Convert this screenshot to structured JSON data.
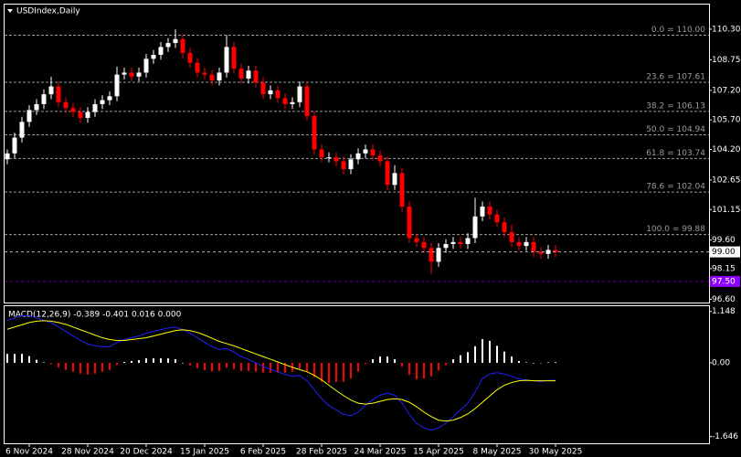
{
  "chart_data": [
    {
      "type": "candlestick",
      "title": "USDIndex,Daily",
      "categories": [
        null,
        null,
        null,
        "6 Nov 2024",
        null,
        null,
        null,
        null,
        null,
        null,
        null,
        "28 Nov 2024",
        null,
        null,
        null,
        null,
        null,
        null,
        null,
        "20 Dec 2024",
        null,
        null,
        null,
        null,
        null,
        null,
        null,
        "15 Jan 2025",
        null,
        null,
        null,
        null,
        null,
        null,
        null,
        "6 Feb 2025",
        null,
        null,
        null,
        null,
        null,
        null,
        null,
        "28 Feb 2025",
        null,
        null,
        null,
        null,
        null,
        null,
        null,
        "24 Mar 2025",
        null,
        null,
        null,
        null,
        null,
        null,
        null,
        "15 Apr 2025",
        null,
        null,
        null,
        null,
        null,
        null,
        null,
        "8 May 2025",
        null,
        null,
        null,
        null,
        null,
        null,
        null,
        "30 May 2025"
      ],
      "ohlc": [
        [
          103.7,
          104.2,
          103.45,
          104.0
        ],
        [
          104.0,
          105.05,
          103.75,
          104.8
        ],
        [
          104.8,
          105.85,
          104.55,
          105.6
        ],
        [
          105.6,
          106.45,
          105.35,
          106.2
        ],
        [
          106.2,
          106.75,
          105.95,
          106.5
        ],
        [
          106.5,
          107.25,
          106.25,
          107.0
        ],
        [
          107.0,
          107.9,
          106.75,
          107.4
        ],
        [
          107.4,
          107.65,
          106.35,
          106.6
        ],
        [
          106.6,
          106.85,
          106.05,
          106.3
        ],
        [
          106.3,
          106.55,
          105.85,
          106.1
        ],
        [
          106.1,
          106.35,
          105.55,
          105.8
        ],
        [
          105.8,
          106.35,
          105.55,
          106.1
        ],
        [
          106.1,
          106.75,
          105.85,
          106.5
        ],
        [
          106.5,
          106.95,
          106.25,
          106.7
        ],
        [
          106.7,
          107.15,
          106.45,
          106.9
        ],
        [
          106.9,
          108.4,
          106.65,
          108.0
        ],
        [
          108.0,
          108.35,
          107.75,
          108.1
        ],
        [
          108.1,
          108.35,
          107.65,
          107.9
        ],
        [
          107.9,
          108.35,
          107.65,
          108.1
        ],
        [
          108.1,
          109.05,
          107.85,
          108.8
        ],
        [
          108.8,
          109.25,
          108.55,
          109.0
        ],
        [
          109.0,
          109.65,
          108.75,
          109.4
        ],
        [
          109.4,
          109.85,
          109.15,
          109.6
        ],
        [
          109.6,
          110.3,
          109.35,
          109.8
        ],
        [
          109.8,
          110.05,
          108.85,
          109.1
        ],
        [
          109.1,
          109.35,
          108.35,
          108.6
        ],
        [
          108.6,
          108.85,
          107.85,
          108.1
        ],
        [
          108.1,
          108.35,
          107.75,
          108.0
        ],
        [
          108.0,
          108.25,
          107.45,
          107.7
        ],
        [
          107.7,
          108.35,
          107.45,
          108.1
        ],
        [
          108.1,
          110.0,
          107.85,
          109.4
        ],
        [
          109.4,
          109.65,
          108.05,
          108.3
        ],
        [
          108.3,
          108.55,
          107.55,
          107.8
        ],
        [
          107.8,
          108.45,
          107.55,
          108.2
        ],
        [
          108.2,
          108.45,
          107.35,
          107.6
        ],
        [
          107.6,
          107.85,
          106.75,
          107.0
        ],
        [
          107.0,
          107.45,
          106.75,
          107.2
        ],
        [
          107.2,
          107.45,
          106.55,
          106.8
        ],
        [
          106.8,
          107.05,
          106.25,
          106.5
        ],
        [
          106.5,
          106.85,
          106.25,
          106.6
        ],
        [
          106.6,
          107.65,
          106.35,
          107.4
        ],
        [
          107.4,
          107.65,
          105.65,
          105.9
        ],
        [
          105.9,
          106.15,
          103.95,
          104.2
        ],
        [
          104.2,
          104.45,
          103.55,
          103.8
        ],
        [
          103.8,
          104.05,
          103.55,
          103.8
        ],
        [
          103.8,
          104.05,
          103.35,
          103.6
        ],
        [
          103.6,
          103.85,
          102.95,
          103.2
        ],
        [
          103.2,
          103.95,
          102.95,
          103.7
        ],
        [
          103.7,
          104.25,
          103.45,
          104.0
        ],
        [
          104.0,
          104.45,
          103.75,
          104.2
        ],
        [
          104.2,
          104.45,
          103.65,
          103.9
        ],
        [
          103.9,
          104.15,
          103.35,
          103.6
        ],
        [
          103.6,
          103.85,
          102.15,
          102.4
        ],
        [
          102.4,
          103.4,
          102.15,
          103.0
        ],
        [
          103.0,
          103.25,
          101.05,
          101.3
        ],
        [
          101.3,
          101.55,
          99.45,
          99.7
        ],
        [
          99.7,
          99.95,
          99.25,
          99.5
        ],
        [
          99.5,
          99.75,
          98.95,
          99.2
        ],
        [
          99.2,
          99.45,
          97.9,
          98.5
        ],
        [
          98.5,
          99.45,
          98.25,
          99.2
        ],
        [
          99.2,
          99.65,
          98.95,
          99.4
        ],
        [
          99.4,
          99.75,
          99.15,
          99.5
        ],
        [
          99.5,
          99.75,
          99.15,
          99.4
        ],
        [
          99.4,
          99.95,
          99.15,
          99.7
        ],
        [
          99.7,
          101.75,
          99.45,
          100.8
        ],
        [
          100.8,
          101.55,
          100.55,
          101.3
        ],
        [
          101.3,
          101.55,
          100.65,
          100.9
        ],
        [
          100.9,
          101.15,
          100.25,
          100.5
        ],
        [
          100.5,
          100.75,
          99.75,
          100.0
        ],
        [
          100.0,
          100.4,
          99.25,
          99.5
        ],
        [
          99.5,
          99.75,
          99.05,
          99.3
        ],
        [
          99.3,
          99.75,
          99.05,
          99.5
        ],
        [
          99.5,
          99.75,
          98.75,
          99.0
        ],
        [
          99.0,
          99.25,
          98.65,
          98.9
        ],
        [
          98.9,
          99.35,
          98.65,
          99.1
        ],
        [
          99.1,
          99.35,
          98.75,
          99.0
        ]
      ],
      "up_color": "#ffffff",
      "down_color": "#ff0000",
      "ylim": [
        96.43,
        111.46
      ],
      "yticks": [
        {
          "value": 110.3,
          "label": "110.30"
        },
        {
          "value": 108.75,
          "label": "108.75"
        },
        {
          "value": 107.2,
          "label": "107.20"
        },
        {
          "value": 105.7,
          "label": "105.70"
        },
        {
          "value": 104.2,
          "label": "104.20"
        },
        {
          "value": 102.65,
          "label": "102.65"
        },
        {
          "value": 101.15,
          "label": "101.15"
        },
        {
          "value": 99.6,
          "label": "99.60"
        },
        {
          "value": 98.15,
          "label": "98.15"
        },
        {
          "value": 96.6,
          "label": "96.60"
        }
      ],
      "levels": [
        {
          "value": 110.0,
          "label": "0.0 = 110.00"
        },
        {
          "value": 107.61,
          "label": "23.6 = 107.61"
        },
        {
          "value": 106.13,
          "label": "38.2 = 106.13"
        },
        {
          "value": 104.94,
          "label": "50.0 = 104.94"
        },
        {
          "value": 103.74,
          "label": "61.8 = 103.74"
        },
        {
          "value": 102.04,
          "label": "78.6 = 102.04"
        },
        {
          "value": 99.88,
          "label": "100.0 = 99.88"
        }
      ],
      "level_color": "#9a9a9a",
      "price_markers": [
        {
          "value": 99.0,
          "label": "99.00",
          "color": "#ffffff",
          "text_color": "#000000"
        },
        {
          "value": 97.5,
          "label": "97.50",
          "color": "#8b00ff",
          "text_color": "#ffffff"
        }
      ]
    },
    {
      "type": "macd",
      "title": "MACD(12,26,9) -0.389 -0.401 0.016 0.000",
      "ylim": [
        -1.796,
        1.265
      ],
      "yticks": [
        1.148,
        {
          "value": 0,
          "label": "0.00"
        },
        -1.646
      ],
      "series": [
        {
          "style": "histogram",
          "positive_color": "#ffffff",
          "negative_color": "#ff0000",
          "values": [
            0.2,
            0.2,
            0.2,
            0.15,
            0.07,
            0.01,
            -0.03,
            -0.1,
            -0.16,
            -0.2,
            -0.24,
            -0.26,
            -0.24,
            -0.2,
            -0.16,
            -0.05,
            0.02,
            0.04,
            0.06,
            0.1,
            0.1,
            0.1,
            0.1,
            0.08,
            0,
            -0.06,
            -0.12,
            -0.16,
            -0.19,
            -0.18,
            -0.11,
            -0.14,
            -0.18,
            -0.18,
            -0.2,
            -0.22,
            -0.22,
            -0.22,
            -0.22,
            -0.2,
            -0.13,
            -0.2,
            -0.32,
            -0.42,
            -0.45,
            -0.43,
            -0.42,
            -0.35,
            -0.2,
            -0.03,
            0.08,
            0.14,
            0.14,
            0.08,
            -0.08,
            -0.27,
            -0.37,
            -0.35,
            -0.3,
            -0.17,
            -0.05,
            0.08,
            0.17,
            0.24,
            0.37,
            0.53,
            0.49,
            0.38,
            0.25,
            0.14,
            0.04,
            0.01,
            0,
            -0.02,
            0.01,
            0.016
          ]
        },
        {
          "style": "line",
          "color": "#2020ff",
          "values": [
            0.95,
            1.0,
            1.05,
            1.05,
            1.0,
            0.95,
            0.9,
            0.8,
            0.7,
            0.6,
            0.5,
            0.42,
            0.38,
            0.36,
            0.36,
            0.45,
            0.52,
            0.56,
            0.6,
            0.66,
            0.7,
            0.74,
            0.78,
            0.8,
            0.74,
            0.66,
            0.56,
            0.46,
            0.36,
            0.3,
            0.32,
            0.24,
            0.14,
            0.08,
            0.0,
            -0.08,
            -0.14,
            -0.2,
            -0.26,
            -0.3,
            -0.28,
            -0.4,
            -0.6,
            -0.8,
            -0.95,
            -1.05,
            -1.15,
            -1.18,
            -1.1,
            -0.95,
            -0.82,
            -0.72,
            -0.68,
            -0.72,
            -0.9,
            -1.15,
            -1.35,
            -1.45,
            -1.5,
            -1.45,
            -1.35,
            -1.2,
            -1.05,
            -0.9,
            -0.65,
            -0.35,
            -0.25,
            -0.22,
            -0.25,
            -0.3,
            -0.36,
            -0.38,
            -0.4,
            -0.42,
            -0.39,
            -0.389
          ]
        },
        {
          "style": "line",
          "color": "#ffff00",
          "values": [
            0.75,
            0.8,
            0.85,
            0.9,
            0.93,
            0.94,
            0.93,
            0.9,
            0.86,
            0.8,
            0.74,
            0.68,
            0.62,
            0.56,
            0.52,
            0.5,
            0.5,
            0.52,
            0.54,
            0.56,
            0.6,
            0.64,
            0.68,
            0.72,
            0.74,
            0.72,
            0.68,
            0.62,
            0.55,
            0.48,
            0.43,
            0.38,
            0.32,
            0.26,
            0.2,
            0.14,
            0.08,
            0.02,
            -0.04,
            -0.1,
            -0.15,
            -0.2,
            -0.28,
            -0.38,
            -0.5,
            -0.62,
            -0.73,
            -0.83,
            -0.9,
            -0.92,
            -0.9,
            -0.86,
            -0.82,
            -0.8,
            -0.82,
            -0.88,
            -0.98,
            -1.1,
            -1.2,
            -1.28,
            -1.3,
            -1.28,
            -1.22,
            -1.14,
            -1.02,
            -0.88,
            -0.74,
            -0.6,
            -0.5,
            -0.44,
            -0.4,
            -0.39,
            -0.4,
            -0.4,
            -0.4,
            -0.401
          ]
        }
      ]
    }
  ]
}
